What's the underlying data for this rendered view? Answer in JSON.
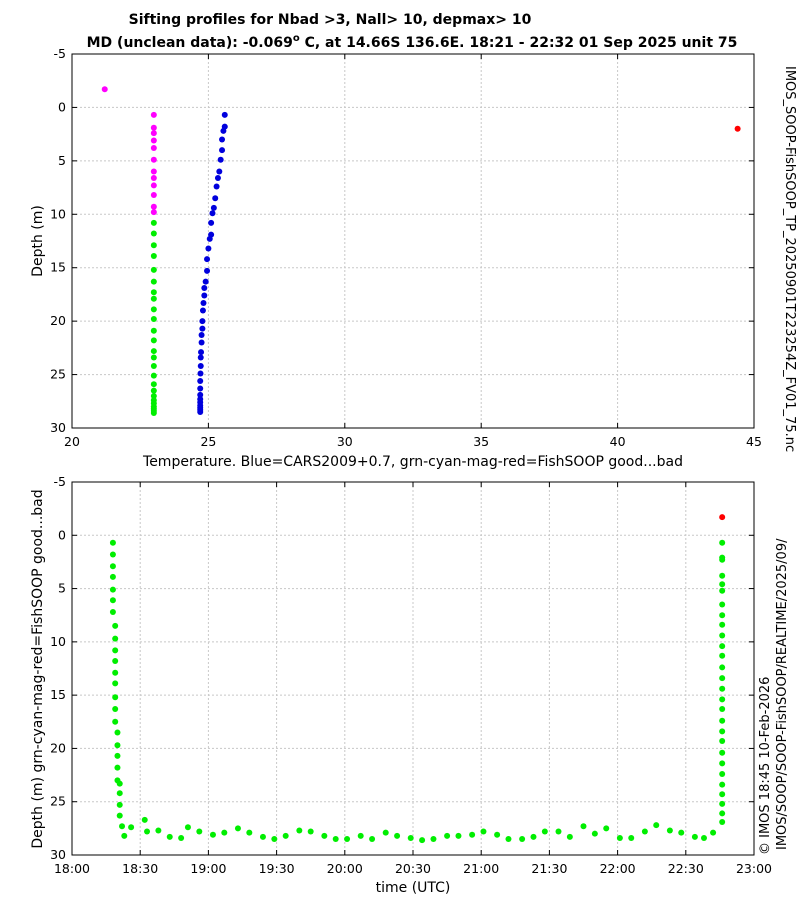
{
  "figure": {
    "title_line1": "Sifting profiles for Nbad >3, Nall> 10, depmax> 10",
    "title_line2_prefix": "MD (unclean data): -0.069",
    "title_line2_sup": "o",
    "title_line2_suffix": " C, at 14.66S 136.6E. 18:21 - 22:32 01 Sep 2025 unit 75",
    "side_label_right_top": "IMOS_SOOP-FishSOOP_TP_20250901T223254Z_FV01_75.nc",
    "side_label_right_bottom": "IMOS/SOOP/SOOP-FishSOOP/REALTIME/2025/09/",
    "side_label_credit": "© IMOS 18:45 10-Feb-2026"
  },
  "colors": {
    "good": "#00ee00",
    "probably_good": "#00dddd",
    "probably_bad": "#ff00ff",
    "bad": "#ff0000",
    "cars": "#0000dd"
  },
  "chart_data": [
    {
      "type": "scatter",
      "xlabel": "Temperature. Blue=CARS2009+0.7, grn-cyan-mag-red=FishSOOP good...bad",
      "ylabel": "Depth (m)",
      "xlim": [
        20,
        45
      ],
      "ylim": [
        30,
        -5
      ],
      "xticks": [
        20,
        25,
        30,
        35,
        40,
        45
      ],
      "yticks": [
        -5,
        0,
        5,
        10,
        15,
        20,
        25,
        30
      ],
      "grid": true,
      "series": [
        {
          "color": "#0000dd",
          "points": [
            [
              25.6,
              0.7
            ],
            [
              25.6,
              1.8
            ],
            [
              25.55,
              2.2
            ],
            [
              25.5,
              3.0
            ],
            [
              25.5,
              4.0
            ],
            [
              25.45,
              4.9
            ],
            [
              25.4,
              6.0
            ],
            [
              25.35,
              6.6
            ],
            [
              25.3,
              7.4
            ],
            [
              25.25,
              8.5
            ],
            [
              25.2,
              9.4
            ],
            [
              25.15,
              9.9
            ],
            [
              25.1,
              10.8
            ],
            [
              25.1,
              11.9
            ],
            [
              25.05,
              12.3
            ],
            [
              25.0,
              13.2
            ],
            [
              24.95,
              14.2
            ],
            [
              24.95,
              15.3
            ],
            [
              24.9,
              16.3
            ],
            [
              24.85,
              16.9
            ],
            [
              24.85,
              17.6
            ],
            [
              24.82,
              18.3
            ],
            [
              24.8,
              19.0
            ],
            [
              24.78,
              20.0
            ],
            [
              24.78,
              20.7
            ],
            [
              24.75,
              21.3
            ],
            [
              24.75,
              22.0
            ],
            [
              24.73,
              22.9
            ],
            [
              24.72,
              23.4
            ],
            [
              24.72,
              24.2
            ],
            [
              24.71,
              24.9
            ],
            [
              24.7,
              25.6
            ],
            [
              24.7,
              26.3
            ],
            [
              24.7,
              26.9
            ],
            [
              24.7,
              27.3
            ],
            [
              24.7,
              27.6
            ],
            [
              24.7,
              27.9
            ],
            [
              24.7,
              28.1
            ],
            [
              24.7,
              28.3
            ],
            [
              24.7,
              28.5
            ]
          ]
        },
        {
          "color": "#ff00ff",
          "points": [
            [
              23.0,
              0.7
            ],
            [
              23.0,
              1.9
            ],
            [
              23.0,
              2.4
            ],
            [
              23.0,
              3.1
            ],
            [
              23.0,
              3.8
            ],
            [
              23.0,
              4.9
            ],
            [
              23.0,
              6.0
            ],
            [
              23.0,
              6.6
            ],
            [
              23.0,
              7.3
            ],
            [
              23.0,
              8.2
            ],
            [
              23.0,
              9.3
            ],
            [
              23.0,
              9.8
            ],
            [
              21.2,
              -1.7
            ]
          ]
        },
        {
          "color": "#ff0000",
          "points": [
            [
              44.4,
              2.0
            ]
          ]
        },
        {
          "color": "#00ee00",
          "points": [
            [
              23.0,
              10.8
            ],
            [
              23.0,
              11.8
            ],
            [
              23.0,
              12.9
            ],
            [
              23.0,
              13.9
            ],
            [
              23.0,
              15.2
            ],
            [
              23.0,
              16.3
            ],
            [
              23.0,
              17.3
            ],
            [
              23.0,
              17.9
            ],
            [
              23.0,
              18.9
            ],
            [
              23.0,
              19.8
            ],
            [
              23.0,
              20.9
            ],
            [
              23.0,
              21.8
            ],
            [
              23.0,
              22.8
            ],
            [
              23.0,
              23.4
            ],
            [
              23.0,
              24.2
            ],
            [
              23.0,
              25.1
            ],
            [
              23.0,
              25.9
            ],
            [
              23.0,
              26.5
            ],
            [
              23.0,
              27.0
            ],
            [
              23.0,
              27.4
            ],
            [
              23.0,
              27.7
            ],
            [
              23.0,
              28.0
            ],
            [
              23.0,
              28.2
            ],
            [
              23.0,
              28.4
            ],
            [
              23.0,
              28.6
            ]
          ]
        }
      ]
    },
    {
      "type": "scatter",
      "xlabel": "time (UTC)",
      "ylabel": "Depth (m) grn-cyan-mag-red=FishSOOP good...bad",
      "xlim": [
        "18:00",
        "23:00"
      ],
      "ylim": [
        30,
        -5
      ],
      "xticks": [
        "18:00",
        "18:30",
        "19:00",
        "19:30",
        "20:00",
        "20:30",
        "21:00",
        "21:30",
        "22:00",
        "22:30",
        "23:00"
      ],
      "yticks": [
        -5,
        0,
        5,
        10,
        15,
        20,
        25,
        30
      ],
      "grid": true,
      "series": [
        {
          "color": "#00ee00",
          "points": [
            [
              "18:18",
              0.7
            ],
            [
              "18:18",
              1.8
            ],
            [
              "18:18",
              2.9
            ],
            [
              "18:18",
              3.9
            ],
            [
              "18:18",
              5.1
            ],
            [
              "18:18",
              6.1
            ],
            [
              "18:18",
              7.2
            ],
            [
              "18:19",
              8.5
            ],
            [
              "18:19",
              9.7
            ],
            [
              "18:19",
              10.8
            ],
            [
              "18:19",
              11.8
            ],
            [
              "18:19",
              12.9
            ],
            [
              "18:19",
              13.9
            ],
            [
              "18:19",
              15.2
            ],
            [
              "18:19",
              16.3
            ],
            [
              "18:19",
              17.5
            ],
            [
              "18:20",
              18.5
            ],
            [
              "18:20",
              19.7
            ],
            [
              "18:20",
              20.7
            ],
            [
              "18:20",
              21.8
            ],
            [
              "18:20",
              23.0
            ],
            [
              "18:21",
              23.3
            ],
            [
              "18:21",
              24.2
            ],
            [
              "18:21",
              25.3
            ],
            [
              "18:21",
              26.3
            ],
            [
              "18:22",
              27.3
            ],
            [
              "18:23",
              28.2
            ],
            [
              "18:26",
              27.4
            ],
            [
              "18:32",
              26.7
            ],
            [
              "18:33",
              27.8
            ],
            [
              "18:38",
              27.7
            ],
            [
              "18:43",
              28.3
            ],
            [
              "18:48",
              28.4
            ],
            [
              "18:51",
              27.4
            ],
            [
              "18:56",
              27.8
            ],
            [
              "19:02",
              28.1
            ],
            [
              "19:07",
              27.9
            ],
            [
              "19:13",
              27.5
            ],
            [
              "19:18",
              27.9
            ],
            [
              "19:24",
              28.3
            ],
            [
              "19:29",
              28.5
            ],
            [
              "19:34",
              28.2
            ],
            [
              "19:40",
              27.7
            ],
            [
              "19:45",
              27.8
            ],
            [
              "19:51",
              28.2
            ],
            [
              "19:56",
              28.5
            ],
            [
              "20:01",
              28.5
            ],
            [
              "20:07",
              28.2
            ],
            [
              "20:12",
              28.5
            ],
            [
              "20:18",
              27.9
            ],
            [
              "20:23",
              28.2
            ],
            [
              "20:29",
              28.4
            ],
            [
              "20:34",
              28.6
            ],
            [
              "20:39",
              28.5
            ],
            [
              "20:45",
              28.2
            ],
            [
              "20:50",
              28.2
            ],
            [
              "20:56",
              28.1
            ],
            [
              "21:01",
              27.8
            ],
            [
              "21:07",
              28.1
            ],
            [
              "21:12",
              28.5
            ],
            [
              "21:18",
              28.5
            ],
            [
              "21:23",
              28.3
            ],
            [
              "21:28",
              27.8
            ],
            [
              "21:34",
              27.8
            ],
            [
              "21:39",
              28.3
            ],
            [
              "21:45",
              27.3
            ],
            [
              "21:50",
              28.0
            ],
            [
              "21:55",
              27.5
            ],
            [
              "22:01",
              28.4
            ],
            [
              "22:06",
              28.4
            ],
            [
              "22:12",
              27.8
            ],
            [
              "22:17",
              27.2
            ],
            [
              "22:23",
              27.7
            ],
            [
              "22:28",
              27.9
            ],
            [
              "22:34",
              28.3
            ],
            [
              "22:38",
              28.4
            ],
            [
              "22:42",
              27.9
            ],
            [
              "22:46",
              26.9
            ],
            [
              "22:46",
              26.1
            ],
            [
              "22:46",
              25.2
            ],
            [
              "22:46",
              24.3
            ],
            [
              "22:46",
              23.4
            ],
            [
              "22:46",
              22.4
            ],
            [
              "22:46",
              21.4
            ],
            [
              "22:46",
              20.4
            ],
            [
              "22:46",
              19.3
            ],
            [
              "22:46",
              18.4
            ],
            [
              "22:46",
              17.4
            ],
            [
              "22:46",
              16.3
            ],
            [
              "22:46",
              15.4
            ],
            [
              "22:46",
              14.4
            ],
            [
              "22:46",
              13.4
            ],
            [
              "22:46",
              12.4
            ],
            [
              "22:46",
              11.3
            ],
            [
              "22:46",
              10.4
            ],
            [
              "22:46",
              9.4
            ],
            [
              "22:46",
              8.4
            ],
            [
              "22:46",
              7.5
            ],
            [
              "22:46",
              6.5
            ],
            [
              "22:46",
              5.2
            ],
            [
              "22:46",
              4.6
            ],
            [
              "22:46",
              3.8
            ],
            [
              "22:46",
              2.3
            ],
            [
              "22:46",
              2.1
            ],
            [
              "22:46",
              0.7
            ]
          ]
        },
        {
          "color": "#ff0000",
          "points": [
            [
              "22:46",
              -1.7
            ]
          ]
        }
      ]
    }
  ]
}
